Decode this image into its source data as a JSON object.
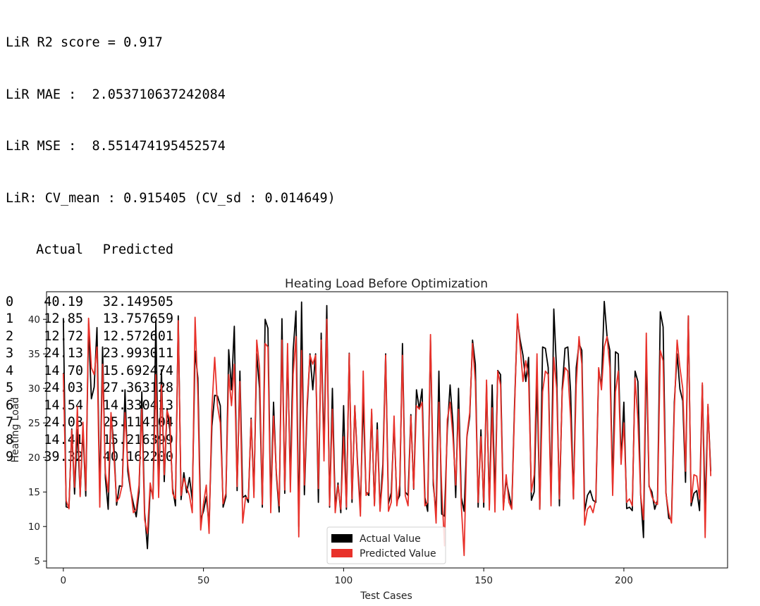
{
  "console": {
    "lines": [
      "LiR R2 score = 0.917",
      "LiR MAE :  2.053710637242084",
      "LiR MSE :  8.551474195452574",
      "LiR: CV_mean : 0.915405 (CV_sd : 0.014649)"
    ],
    "table": {
      "columns": [
        "Actual",
        "Predicted"
      ],
      "rows": [
        {
          "idx": "0",
          "actual": "40.19",
          "predicted": "32.149505"
        },
        {
          "idx": "1",
          "actual": "12.85",
          "predicted": "13.757659"
        },
        {
          "idx": "2",
          "actual": "12.72",
          "predicted": "12.572601"
        },
        {
          "idx": "3",
          "actual": "24.13",
          "predicted": "23.993011"
        },
        {
          "idx": "4",
          "actual": "14.70",
          "predicted": "15.692474"
        },
        {
          "idx": "5",
          "actual": "24.03",
          "predicted": "27.363128"
        },
        {
          "idx": "6",
          "actual": "14.54",
          "predicted": "14.330413"
        },
        {
          "idx": "7",
          "actual": "24.03",
          "predicted": "25.114104"
        },
        {
          "idx": "8",
          "actual": "14.41",
          "predicted": "15.216399"
        },
        {
          "idx": "9",
          "actual": "39.32",
          "predicted": "40.162200"
        }
      ]
    }
  },
  "chart_data": {
    "type": "line",
    "title": "Heating Load Before Optimization",
    "xlabel": "Test Cases",
    "ylabel": "Heating Load",
    "xlim": [
      -6,
      237
    ],
    "ylim": [
      4,
      44
    ],
    "xticks": [
      0,
      50,
      100,
      150,
      200
    ],
    "yticks": [
      5,
      10,
      15,
      20,
      25,
      30,
      35,
      40
    ],
    "grid": false,
    "legend_position": "lower-center",
    "series": [
      {
        "name": "Actual Value",
        "color": "#000000",
        "values": [
          40.19,
          12.85,
          12.72,
          24.13,
          14.7,
          24.03,
          14.54,
          24.03,
          14.41,
          39.32,
          28.5,
          30.2,
          38.8,
          14.5,
          36.0,
          17.0,
          12.5,
          26.2,
          22.0,
          13.1,
          15.9,
          15.8,
          29.8,
          18.0,
          15.2,
          13.3,
          11.4,
          15.0,
          29.5,
          12.0,
          6.8,
          15.6,
          14.5,
          39.8,
          15.0,
          32.7,
          16.5,
          27.0,
          24.0,
          15.5,
          13.0,
          40.5,
          13.9,
          17.8,
          14.9,
          17.1,
          13.8,
          35.4,
          31.5,
          11.0,
          12.2,
          14.3,
          10.2,
          24.5,
          29.0,
          28.9,
          27.5,
          12.8,
          14.3,
          35.6,
          29.8,
          39.0,
          15.2,
          32.5,
          14.2,
          14.5,
          13.5,
          25.7,
          15.0,
          35.0,
          30.0,
          12.8,
          40.0,
          38.7,
          13.2,
          28.0,
          17.5,
          12.1,
          40.1,
          14.8,
          35.0,
          16.8,
          35.5,
          41.2,
          10.0,
          42.5,
          14.6,
          27.1,
          35.0,
          29.8,
          35.0,
          13.5,
          38.0,
          21.5,
          42.0,
          12.8,
          30.0,
          12.8,
          16.3,
          12.0,
          27.5,
          12.5,
          35.1,
          13.5,
          27.5,
          19.0,
          12.8,
          28.5,
          15.0,
          14.5,
          26.5,
          13.2,
          25.0,
          12.5,
          19.0,
          35.0,
          13.3,
          14.9,
          25.0,
          13.6,
          14.5,
          36.5,
          15.0,
          14.5,
          26.2,
          15.4,
          29.8,
          27.0,
          29.9,
          14.2,
          12.2,
          37.0,
          16.0,
          12.0,
          32.5,
          11.8,
          11.5,
          24.0,
          30.5,
          25.0,
          14.2,
          30.0,
          14.2,
          12.2,
          23.0,
          25.9,
          37.0,
          33.5,
          12.8,
          24.0,
          12.8,
          30.5,
          13.0,
          30.5,
          14.1,
          32.6,
          32.0,
          12.8,
          16.7,
          14.7,
          12.7,
          27.8,
          40.0,
          37.0,
          34.8,
          31.0,
          34.5,
          13.8,
          15.0,
          31.0,
          12.5,
          36.0,
          35.8,
          33.0,
          14.0,
          41.5,
          32.5,
          13.0,
          30.0,
          35.8,
          36.0,
          29.5,
          14.0,
          33.0,
          36.5,
          35.5,
          12.2,
          14.5,
          15.2,
          13.8,
          13.5,
          32.7,
          30.3,
          42.6,
          37.5,
          35.5,
          15.5,
          35.3,
          35.0,
          19.5,
          28.0,
          12.6,
          12.8,
          12.3,
          32.5,
          31.0,
          14.5,
          8.4,
          35.0,
          15.8,
          15.0,
          12.5,
          13.8,
          41.1,
          38.9,
          15.0,
          11.2,
          11.0,
          28.0,
          35.0,
          29.9,
          28.2,
          16.4,
          40.5,
          13.0,
          14.8,
          15.2,
          12.3,
          30.5,
          12.5,
          27.4,
          18.0
        ]
      },
      {
        "name": "Predicted Value",
        "color": "#e8312a",
        "values": [
          32.15,
          13.76,
          12.57,
          23.99,
          15.69,
          27.36,
          14.33,
          25.11,
          15.22,
          40.16,
          33.0,
          32.0,
          36.0,
          12.8,
          33.5,
          17.8,
          15.0,
          26.5,
          20.5,
          13.6,
          14.2,
          16.0,
          26.5,
          19.0,
          15.5,
          12.0,
          12.5,
          16.0,
          27.0,
          11.0,
          9.0,
          16.3,
          14.0,
          32.0,
          14.2,
          30.5,
          17.5,
          26.8,
          25.5,
          14.8,
          14.0,
          39.8,
          14.5,
          17.0,
          15.6,
          14.5,
          12.0,
          40.3,
          29.0,
          9.5,
          13.3,
          16.0,
          9.0,
          27.0,
          34.5,
          27.5,
          25.0,
          13.3,
          14.8,
          32.0,
          27.5,
          33.5,
          15.8,
          31.0,
          10.5,
          14.2,
          14.0,
          25.5,
          14.2,
          37.0,
          33.0,
          13.2,
          36.5,
          36.0,
          12.0,
          26.0,
          17.8,
          13.0,
          37.0,
          15.3,
          36.5,
          15.0,
          32.0,
          37.5,
          8.5,
          35.5,
          16.0,
          28.0,
          34.8,
          33.5,
          34.8,
          15.5,
          37.0,
          19.5,
          40.0,
          13.0,
          27.0,
          12.0,
          16.0,
          12.5,
          23.0,
          12.8,
          35.0,
          14.0,
          27.5,
          18.5,
          11.5,
          32.5,
          14.5,
          15.0,
          27.0,
          13.0,
          24.0,
          12.2,
          17.5,
          34.8,
          12.2,
          13.5,
          26.0,
          13.0,
          16.0,
          34.8,
          14.5,
          13.0,
          26.0,
          15.5,
          27.5,
          27.0,
          28.0,
          13.0,
          13.5,
          37.8,
          17.0,
          10.5,
          28.0,
          15.5,
          7.2,
          25.5,
          28.0,
          23.0,
          16.0,
          27.0,
          13.0,
          5.8,
          23.2,
          26.5,
          36.5,
          31.0,
          13.5,
          23.0,
          13.5,
          31.2,
          12.4,
          27.2,
          12.1,
          32.5,
          30.5,
          12.4,
          17.5,
          13.5,
          12.5,
          27.0,
          40.8,
          36.0,
          31.0,
          34.0,
          31.5,
          15.0,
          17.5,
          35.0,
          12.5,
          29.5,
          32.5,
          32.0,
          13.0,
          34.5,
          30.0,
          14.0,
          29.5,
          33.0,
          32.5,
          25.6,
          14.0,
          30.5,
          37.5,
          33.5,
          10.2,
          12.5,
          13.0,
          12.0,
          14.0,
          33.0,
          29.8,
          36.0,
          37.5,
          33.0,
          14.5,
          29.5,
          32.5,
          19.0,
          25.0,
          13.5,
          14.0,
          13.0,
          31.5,
          25.5,
          14.5,
          11.0,
          38.0,
          16.0,
          14.3,
          13.5,
          13.2,
          35.5,
          34.0,
          14.8,
          12.0,
          10.5,
          27.0,
          37.0,
          33.0,
          30.0,
          18.0,
          40.5,
          13.5,
          17.5,
          17.3,
          14.0,
          30.8,
          8.4,
          27.7,
          17.3
        ]
      }
    ]
  }
}
